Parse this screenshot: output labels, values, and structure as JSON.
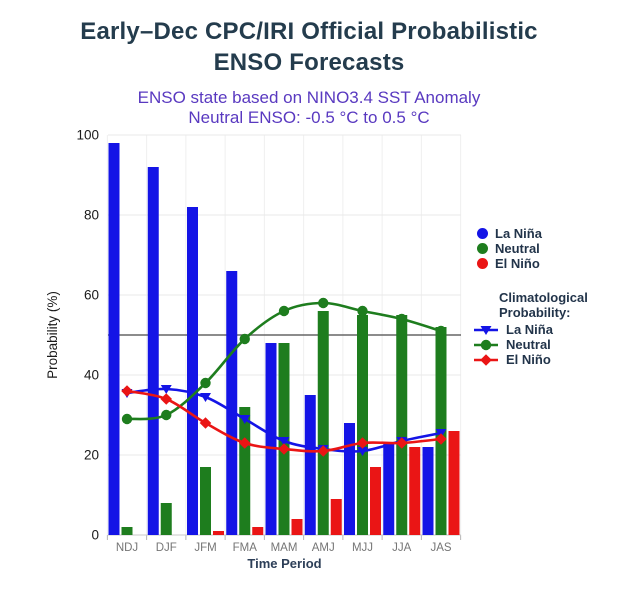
{
  "header": {
    "title_line1": "Early–Dec CPC/IRI Official Probabilistic",
    "title_line2": "ENSO Forecasts",
    "subtitle_line1": "ENSO state based on NINO3.4 SST Anomaly",
    "subtitle_line2": "Neutral ENSO: -0.5 °C to 0.5 °C",
    "title_color": "#243c4d",
    "subtitle_color": "#5939c0"
  },
  "chart_data": {
    "type": "bar+line",
    "title": "Early–Dec CPC/IRI Official Probabilistic ENSO Forecasts",
    "subtitle": "ENSO state based on NINO3.4 SST Anomaly | Neutral ENSO: -0.5 °C to 0.5 °C",
    "categories": [
      "NDJ",
      "DJF",
      "JFM",
      "FMA",
      "MAM",
      "AMJ",
      "MJJ",
      "JJA",
      "JAS"
    ],
    "bar_series": [
      {
        "name": "La Niña",
        "color": "#1414e6",
        "values": [
          98,
          92,
          82,
          66,
          48,
          35,
          28,
          23,
          22
        ]
      },
      {
        "name": "Neutral",
        "color": "#1e7d1e",
        "values": [
          2,
          8,
          17,
          32,
          48,
          56,
          55,
          55,
          52
        ]
      },
      {
        "name": "El Niño",
        "color": "#ea1515",
        "values": [
          0,
          0,
          1,
          2,
          4,
          9,
          17,
          22,
          26
        ]
      }
    ],
    "line_series": [
      {
        "name": "La Niña",
        "color": "#1414e6",
        "marker": "triangle-down",
        "values": [
          35.5,
          36.5,
          34.5,
          29,
          23.5,
          21.5,
          21,
          23.5,
          25.5
        ]
      },
      {
        "name": "Neutral",
        "color": "#1e7d1e",
        "marker": "circle",
        "values": [
          29,
          30,
          38,
          49,
          56,
          58,
          56,
          54,
          51
        ]
      },
      {
        "name": "El Niño",
        "color": "#ea1515",
        "marker": "diamond",
        "values": [
          36,
          34,
          28,
          23,
          21.5,
          21,
          23,
          23,
          24
        ]
      }
    ],
    "xlabel": "Time Period",
    "ylabel": "Probability (%)",
    "ylim": [
      0,
      100
    ],
    "yticks": [
      0,
      20,
      40,
      60,
      80,
      100
    ],
    "reference_line": 50,
    "grid": true,
    "legend_position": "right",
    "colors": {
      "grid": "#e9e9e9",
      "vgrid": "#efefef",
      "axis": "#c9c9c9",
      "tick": "#b5b5b5",
      "reference": "#666666",
      "ytick_label": "#1a1a1a",
      "xtick_label": "#757575",
      "xlabel": "#2c3e57",
      "ylabel": "#1a1a1a"
    }
  },
  "legend": {
    "items": [
      "La Niña",
      "Neutral",
      "El Niño"
    ],
    "climo_title_line1": "Climatological",
    "climo_title_line2": "Probability:",
    "climo_items": [
      "La Niña",
      "Neutral",
      "El Niño"
    ]
  }
}
